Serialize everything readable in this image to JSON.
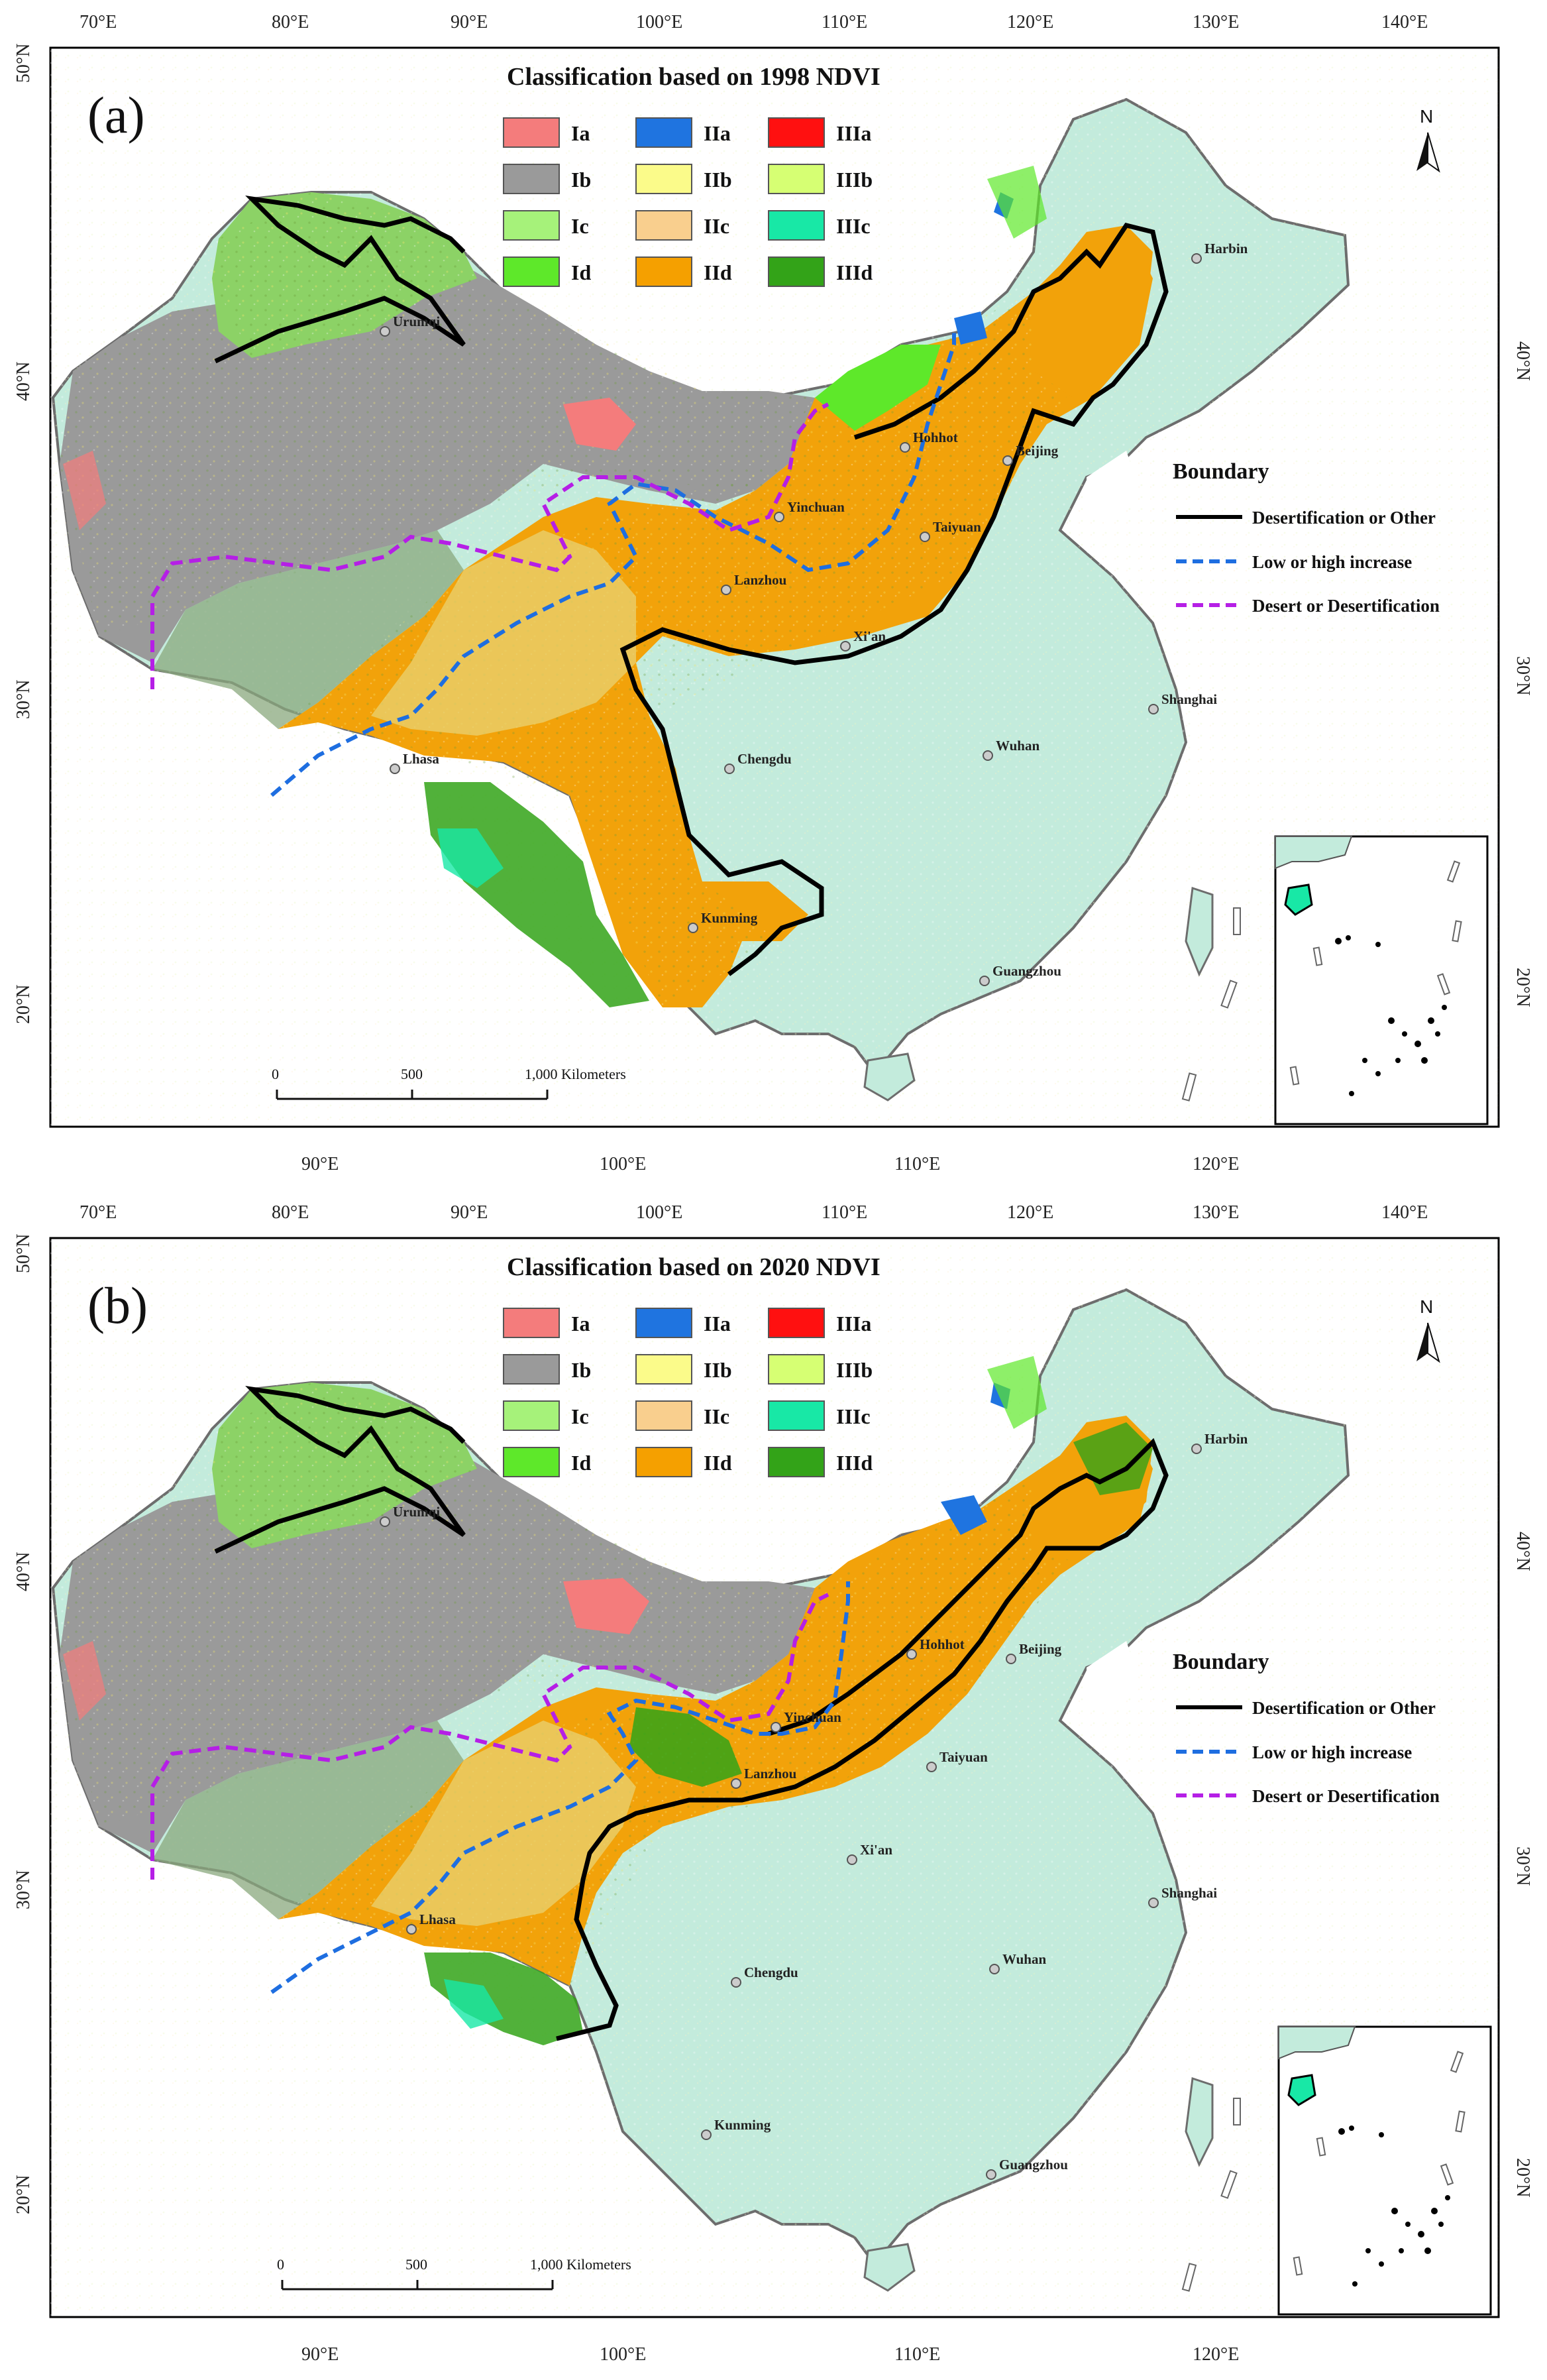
{
  "colors": {
    "Ia": "#f47c7c",
    "Ib": "#9a9a9a",
    "Ic": "#a6f27a",
    "Id": "#5ee82a",
    "IIa": "#1f74e0",
    "IIb": "#fbfb8a",
    "IIc": "#f9cf8e",
    "IId": "#f5a000",
    "IIIa": "#ff1010",
    "IIIb": "#d6ff73",
    "IIIc": "#18e8a6",
    "IIId": "#33a318",
    "east": "#bfead9",
    "boundary_black": "#000000",
    "boundary_blue": "#1e6ee0",
    "boundary_purple": "#b51fe6"
  },
  "legend": [
    {
      "key": "Ia",
      "label": "Ia"
    },
    {
      "key": "IIa",
      "label": "IIa"
    },
    {
      "key": "IIIa",
      "label": "IIIa"
    },
    {
      "key": "Ib",
      "label": "Ib"
    },
    {
      "key": "IIb",
      "label": "IIb"
    },
    {
      "key": "IIIb",
      "label": "IIIb"
    },
    {
      "key": "Ic",
      "label": "Ic"
    },
    {
      "key": "IIc",
      "label": "IIc"
    },
    {
      "key": "IIIc",
      "label": "IIIc"
    },
    {
      "key": "Id",
      "label": "Id"
    },
    {
      "key": "IId",
      "label": "IId"
    },
    {
      "key": "IIId",
      "label": "IIId"
    }
  ],
  "boundary": {
    "title": "Boundary",
    "items": [
      {
        "label": "Desertification or Other",
        "style": "solid"
      },
      {
        "label": "Low or high increase",
        "style": "dashed-blue"
      },
      {
        "label": "Desert or Desertification",
        "style": "dashed-purple"
      }
    ]
  },
  "axes": {
    "top_lon": [
      "70°E",
      "80°E",
      "90°E",
      "100°E",
      "110°E",
      "120°E",
      "130°E",
      "140°E"
    ],
    "bottom_lon": [
      "90°E",
      "100°E",
      "110°E",
      "120°E"
    ],
    "left_lat": [
      "50°N",
      "40°N",
      "30°N",
      "20°N"
    ],
    "right_lat": [
      "40°N",
      "30°N",
      "20°N"
    ]
  },
  "scale_bar": {
    "labels": [
      "0",
      "500",
      "1,000 Kilometers"
    ]
  },
  "north_label": "N",
  "panels": [
    {
      "letter": "(a)",
      "title": "Classification based on 1998  NDVI",
      "cities": [
        "Harbin",
        "Urumqi",
        "Hohhot",
        "Beijing",
        "Yinchuan",
        "Taiyuan",
        "Lanzhou",
        "Xi'an",
        "Shanghai",
        "Lhasa",
        "Chengdu",
        "Wuhan",
        "Kunming",
        "Guangzhou"
      ]
    },
    {
      "letter": "(b)",
      "title": "Classification based on 2020  NDVI",
      "cities": [
        "Harbin",
        "Urumqi",
        "Hohhot",
        "Beijing",
        "Yinchuan",
        "Taiyuan",
        "Lanzhou",
        "Xi'an",
        "Shanghai",
        "Lhasa",
        "Chengdu",
        "Wuhan",
        "Kunming",
        "Guangzhou"
      ]
    }
  ]
}
